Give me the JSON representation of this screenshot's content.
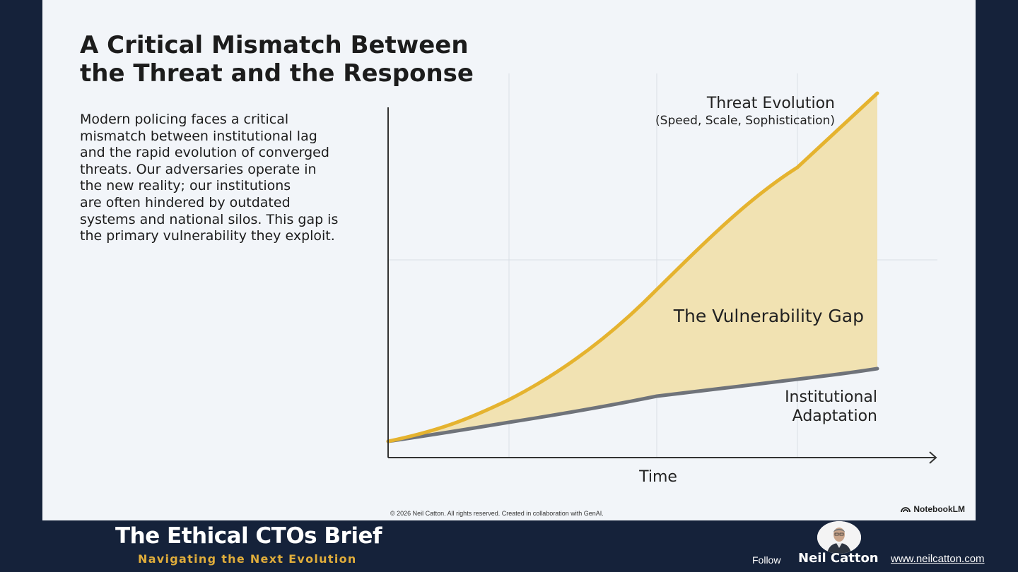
{
  "slide": {
    "title_lines": [
      "A Critical Mismatch Between",
      "the Threat and the Response"
    ],
    "body_lines": [
      "Modern policing faces a critical",
      "mismatch between institutional lag",
      "and the rapid evolution of converged",
      "threats. Our adversaries operate in",
      "the new reality; our institutions",
      "are often hindered by outdated",
      "systems and national silos. This gap is",
      "the primary vulnerability they exploit."
    ],
    "copyright": "© 2026 Neil Catton. All rights reserved. Created in collaboration with GenAI.",
    "brand_mark": "NotebookLM"
  },
  "diagram": {
    "threat_label": "Threat Evolution",
    "threat_sublabel": "(Speed, Scale, Sophistication)",
    "gap_label": "The Vulnerability Gap",
    "institution_label_lines": [
      "Institutional",
      "Adaptation"
    ],
    "x_axis_label": "Time",
    "colors": {
      "threat_line": "#e5b32f",
      "gap_fill": "#f1e2b2",
      "institution_line": "#6f737a",
      "grid": "#d9dee5",
      "axis": "#333333"
    }
  },
  "banner": {
    "title": "The Ethical CTOs Brief",
    "subtitle": "Navigating the Next Evolution",
    "follow_label": "Follow",
    "author": "Neil Catton",
    "website": "www.neilcatton.com"
  }
}
